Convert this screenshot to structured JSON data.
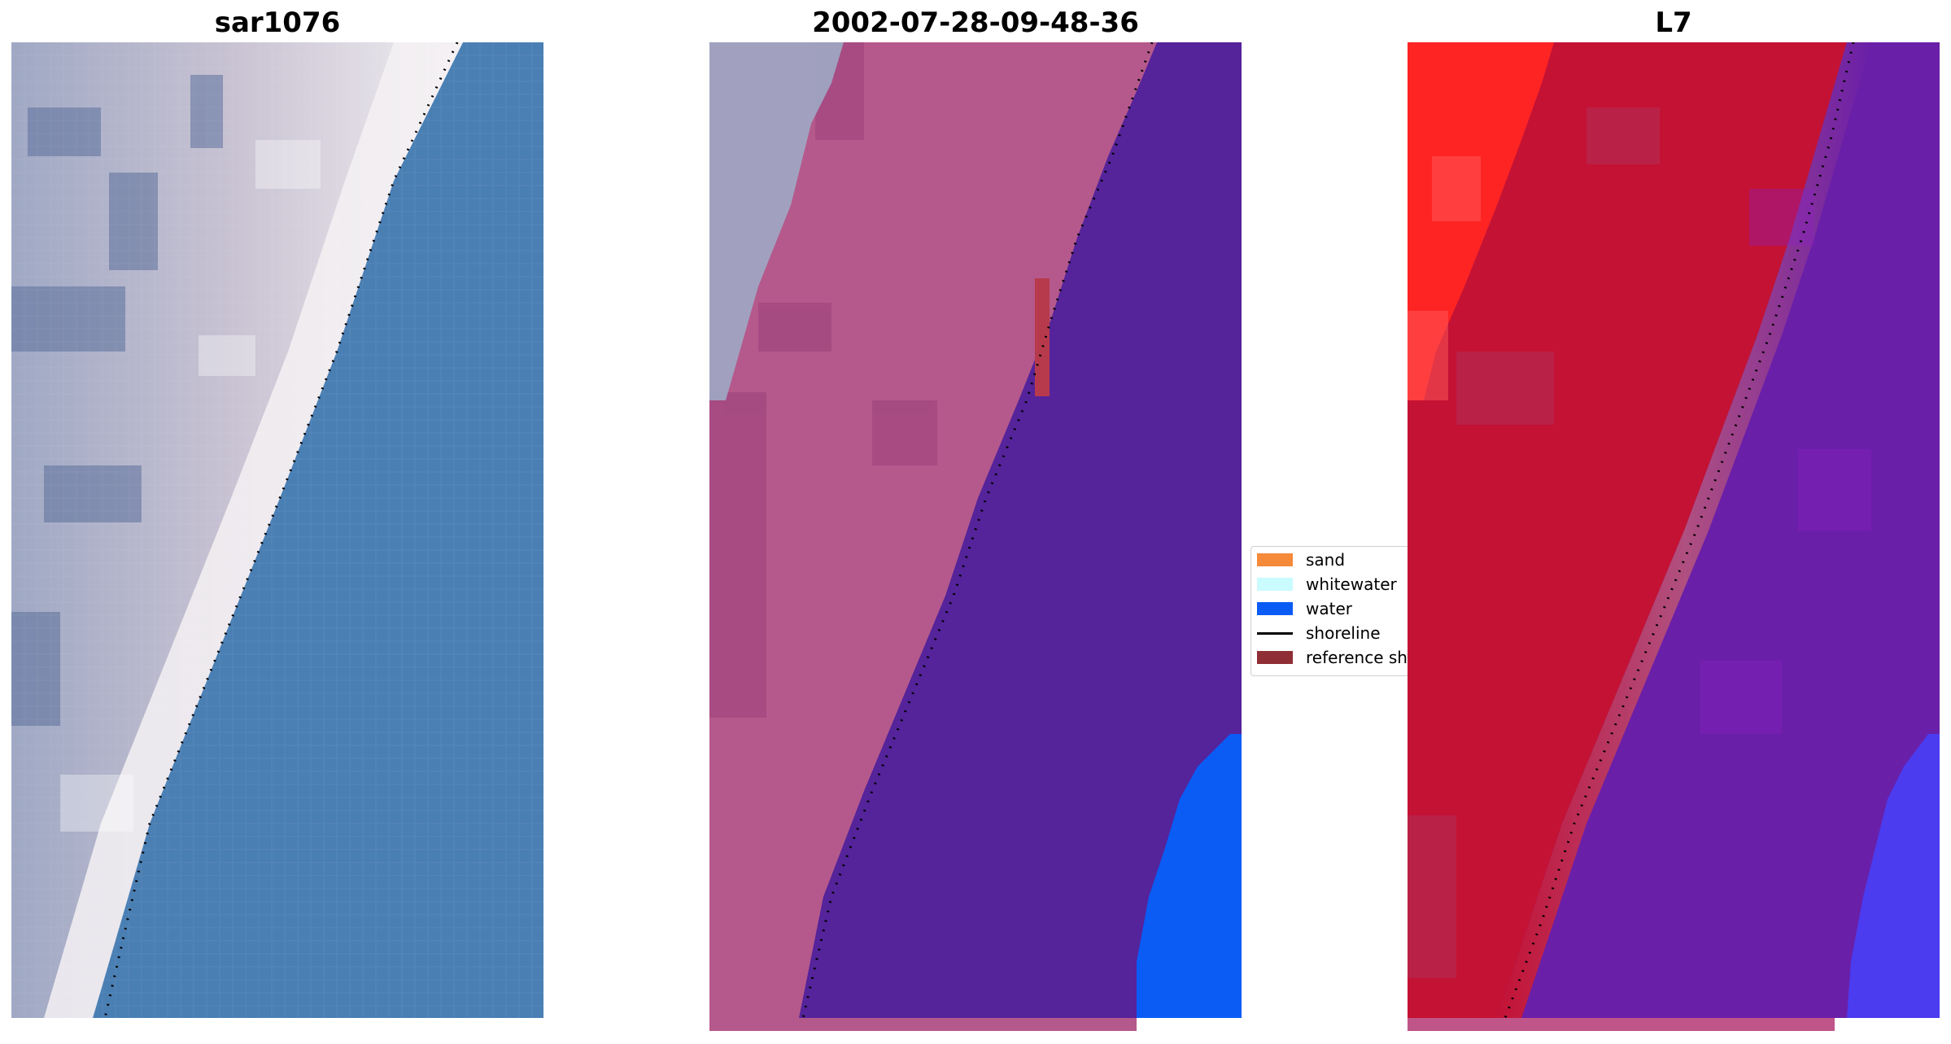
{
  "panels": {
    "left": {
      "title": "sar1076"
    },
    "middle": {
      "title": "2002-07-28-09-48-36"
    },
    "right": {
      "title": "L7"
    }
  },
  "legend": {
    "items": [
      {
        "label": "sand",
        "color": "#f58a3a",
        "kind": "patch"
      },
      {
        "label": "whitewater",
        "color": "#c9fbff",
        "kind": "patch"
      },
      {
        "label": "water",
        "color": "#0a5cf5",
        "kind": "patch"
      },
      {
        "label": "shoreline",
        "color": "#000000",
        "kind": "line"
      },
      {
        "label": "reference sh",
        "color": "#8f2e35",
        "kind": "patch"
      }
    ]
  },
  "colors": {
    "satellite_water": "#4a7fb4",
    "satellite_sand": "#d8cfd6",
    "class_sand": "#b5598c",
    "class_water": "#55239a",
    "class_bright_water": "#0a5cf5",
    "class_reference": "#b73a4c",
    "index_land": "#c41234",
    "index_water": "#6a1fa8",
    "index_bright": "#ff2424"
  }
}
